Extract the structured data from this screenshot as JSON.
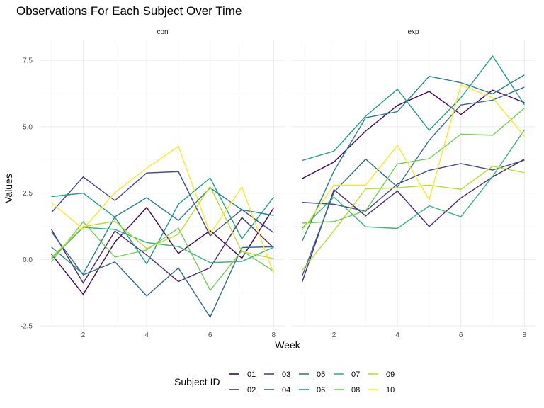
{
  "chart_data": {
    "type": "line",
    "title": "Observations For Each Subject Over Time",
    "xlabel": "Week",
    "ylabel": "Values",
    "xlim": [
      0.65,
      8.35
    ],
    "ylim": [
      -2.55,
      8.25
    ],
    "x_ticks": [
      2,
      4,
      6,
      8
    ],
    "y_ticks": [
      -2.5,
      0,
      2.5,
      5,
      7.5
    ],
    "y_tick_labels": [
      "-2.5",
      "0.0",
      "2.5",
      "5.0",
      "7.5"
    ],
    "x": [
      1,
      2,
      3,
      4,
      5,
      6,
      7,
      8
    ],
    "grid": true,
    "legend": {
      "title": "Subject ID",
      "placement": "bottom",
      "entries": [
        {
          "label": "01",
          "color": "#440154"
        },
        {
          "label": "02",
          "color": "#482878"
        },
        {
          "label": "03",
          "color": "#3e4989"
        },
        {
          "label": "04",
          "color": "#31688e"
        },
        {
          "label": "05",
          "color": "#26828e"
        },
        {
          "label": "06",
          "color": "#1f9e89"
        },
        {
          "label": "07",
          "color": "#35b779"
        },
        {
          "label": "08",
          "color": "#6ece58"
        },
        {
          "label": "09",
          "color": "#b5de2b"
        },
        {
          "label": "10",
          "color": "#fde725"
        }
      ]
    },
    "panels": [
      {
        "label": "con",
        "series": [
          {
            "subject": "01",
            "values": [
              0.2,
              -1.31,
              0.66,
              1.96,
              0.23,
              1.09,
              0.05,
              1.94
            ]
          },
          {
            "subject": "02",
            "values": [
              1.13,
              -0.88,
              1.07,
              0.17,
              -0.83,
              -0.31,
              1.58,
              0.44
            ]
          },
          {
            "subject": "03",
            "values": [
              1.77,
              3.11,
              2.22,
              3.26,
              3.31,
              0.89,
              1.88,
              1.01
            ]
          },
          {
            "subject": "04",
            "values": [
              1.04,
              -0.58,
              -0.09,
              -1.37,
              -0.32,
              -2.17,
              0.45,
              0.48
            ]
          },
          {
            "subject": "05",
            "values": [
              0.47,
              -0.54,
              1.61,
              2.33,
              1.47,
              2.7,
              1.87,
              1.66
            ]
          },
          {
            "subject": "06",
            "values": [
              2.37,
              2.5,
              1.59,
              -0.16,
              2.08,
              3.07,
              0.78,
              2.35
            ]
          },
          {
            "subject": "07",
            "values": [
              0.03,
              1.21,
              1.13,
              0.64,
              0.49,
              -0.12,
              -0.07,
              0.46
            ]
          },
          {
            "subject": "08",
            "values": [
              -0.09,
              1.42,
              0.09,
              0.36,
              1.18,
              -1.16,
              0.33,
              -0.44
            ]
          },
          {
            "subject": "09",
            "values": [
              0.08,
              1.24,
              1.44,
              0.41,
              0.95,
              2.75,
              0.3,
              0.03
            ]
          },
          {
            "subject": "10",
            "values": [
              2.14,
              1.15,
              2.52,
              3.44,
              4.26,
              0.97,
              2.73,
              -0.53
            ]
          }
        ]
      },
      {
        "label": "exp",
        "series": [
          {
            "subject": "01",
            "values": [
              3.05,
              3.67,
              4.84,
              5.8,
              6.33,
              5.46,
              6.38,
              5.91
            ]
          },
          {
            "subject": "02",
            "values": [
              -0.84,
              2.63,
              1.64,
              2.58,
              1.24,
              2.32,
              3.11,
              3.78
            ]
          },
          {
            "subject": "03",
            "values": [
              2.15,
              2.08,
              1.82,
              2.84,
              3.36,
              3.61,
              3.37,
              3.74
            ]
          },
          {
            "subject": "04",
            "values": [
              -0.62,
              2.54,
              3.78,
              2.73,
              4.49,
              5.82,
              6.0,
              6.49
            ]
          },
          {
            "subject": "05",
            "values": [
              0.7,
              3.33,
              5.34,
              5.57,
              6.9,
              6.66,
              6.24,
              6.95
            ]
          },
          {
            "subject": "06",
            "values": [
              3.73,
              4.08,
              5.4,
              6.41,
              4.87,
              6.09,
              7.66,
              5.83
            ]
          },
          {
            "subject": "07",
            "values": [
              1.18,
              2.35,
              1.23,
              1.17,
              2.02,
              1.61,
              3.13,
              4.88
            ]
          },
          {
            "subject": "08",
            "values": [
              1.37,
              1.43,
              1.84,
              3.6,
              3.8,
              4.72,
              4.68,
              5.7
            ]
          },
          {
            "subject": "09",
            "values": [
              -0.4,
              1.08,
              2.66,
              2.7,
              2.8,
              2.64,
              3.51,
              3.27
            ]
          },
          {
            "subject": "10",
            "values": [
              1.09,
              2.8,
              2.8,
              4.3,
              2.25,
              6.57,
              6.09,
              4.64
            ]
          }
        ]
      }
    ]
  }
}
